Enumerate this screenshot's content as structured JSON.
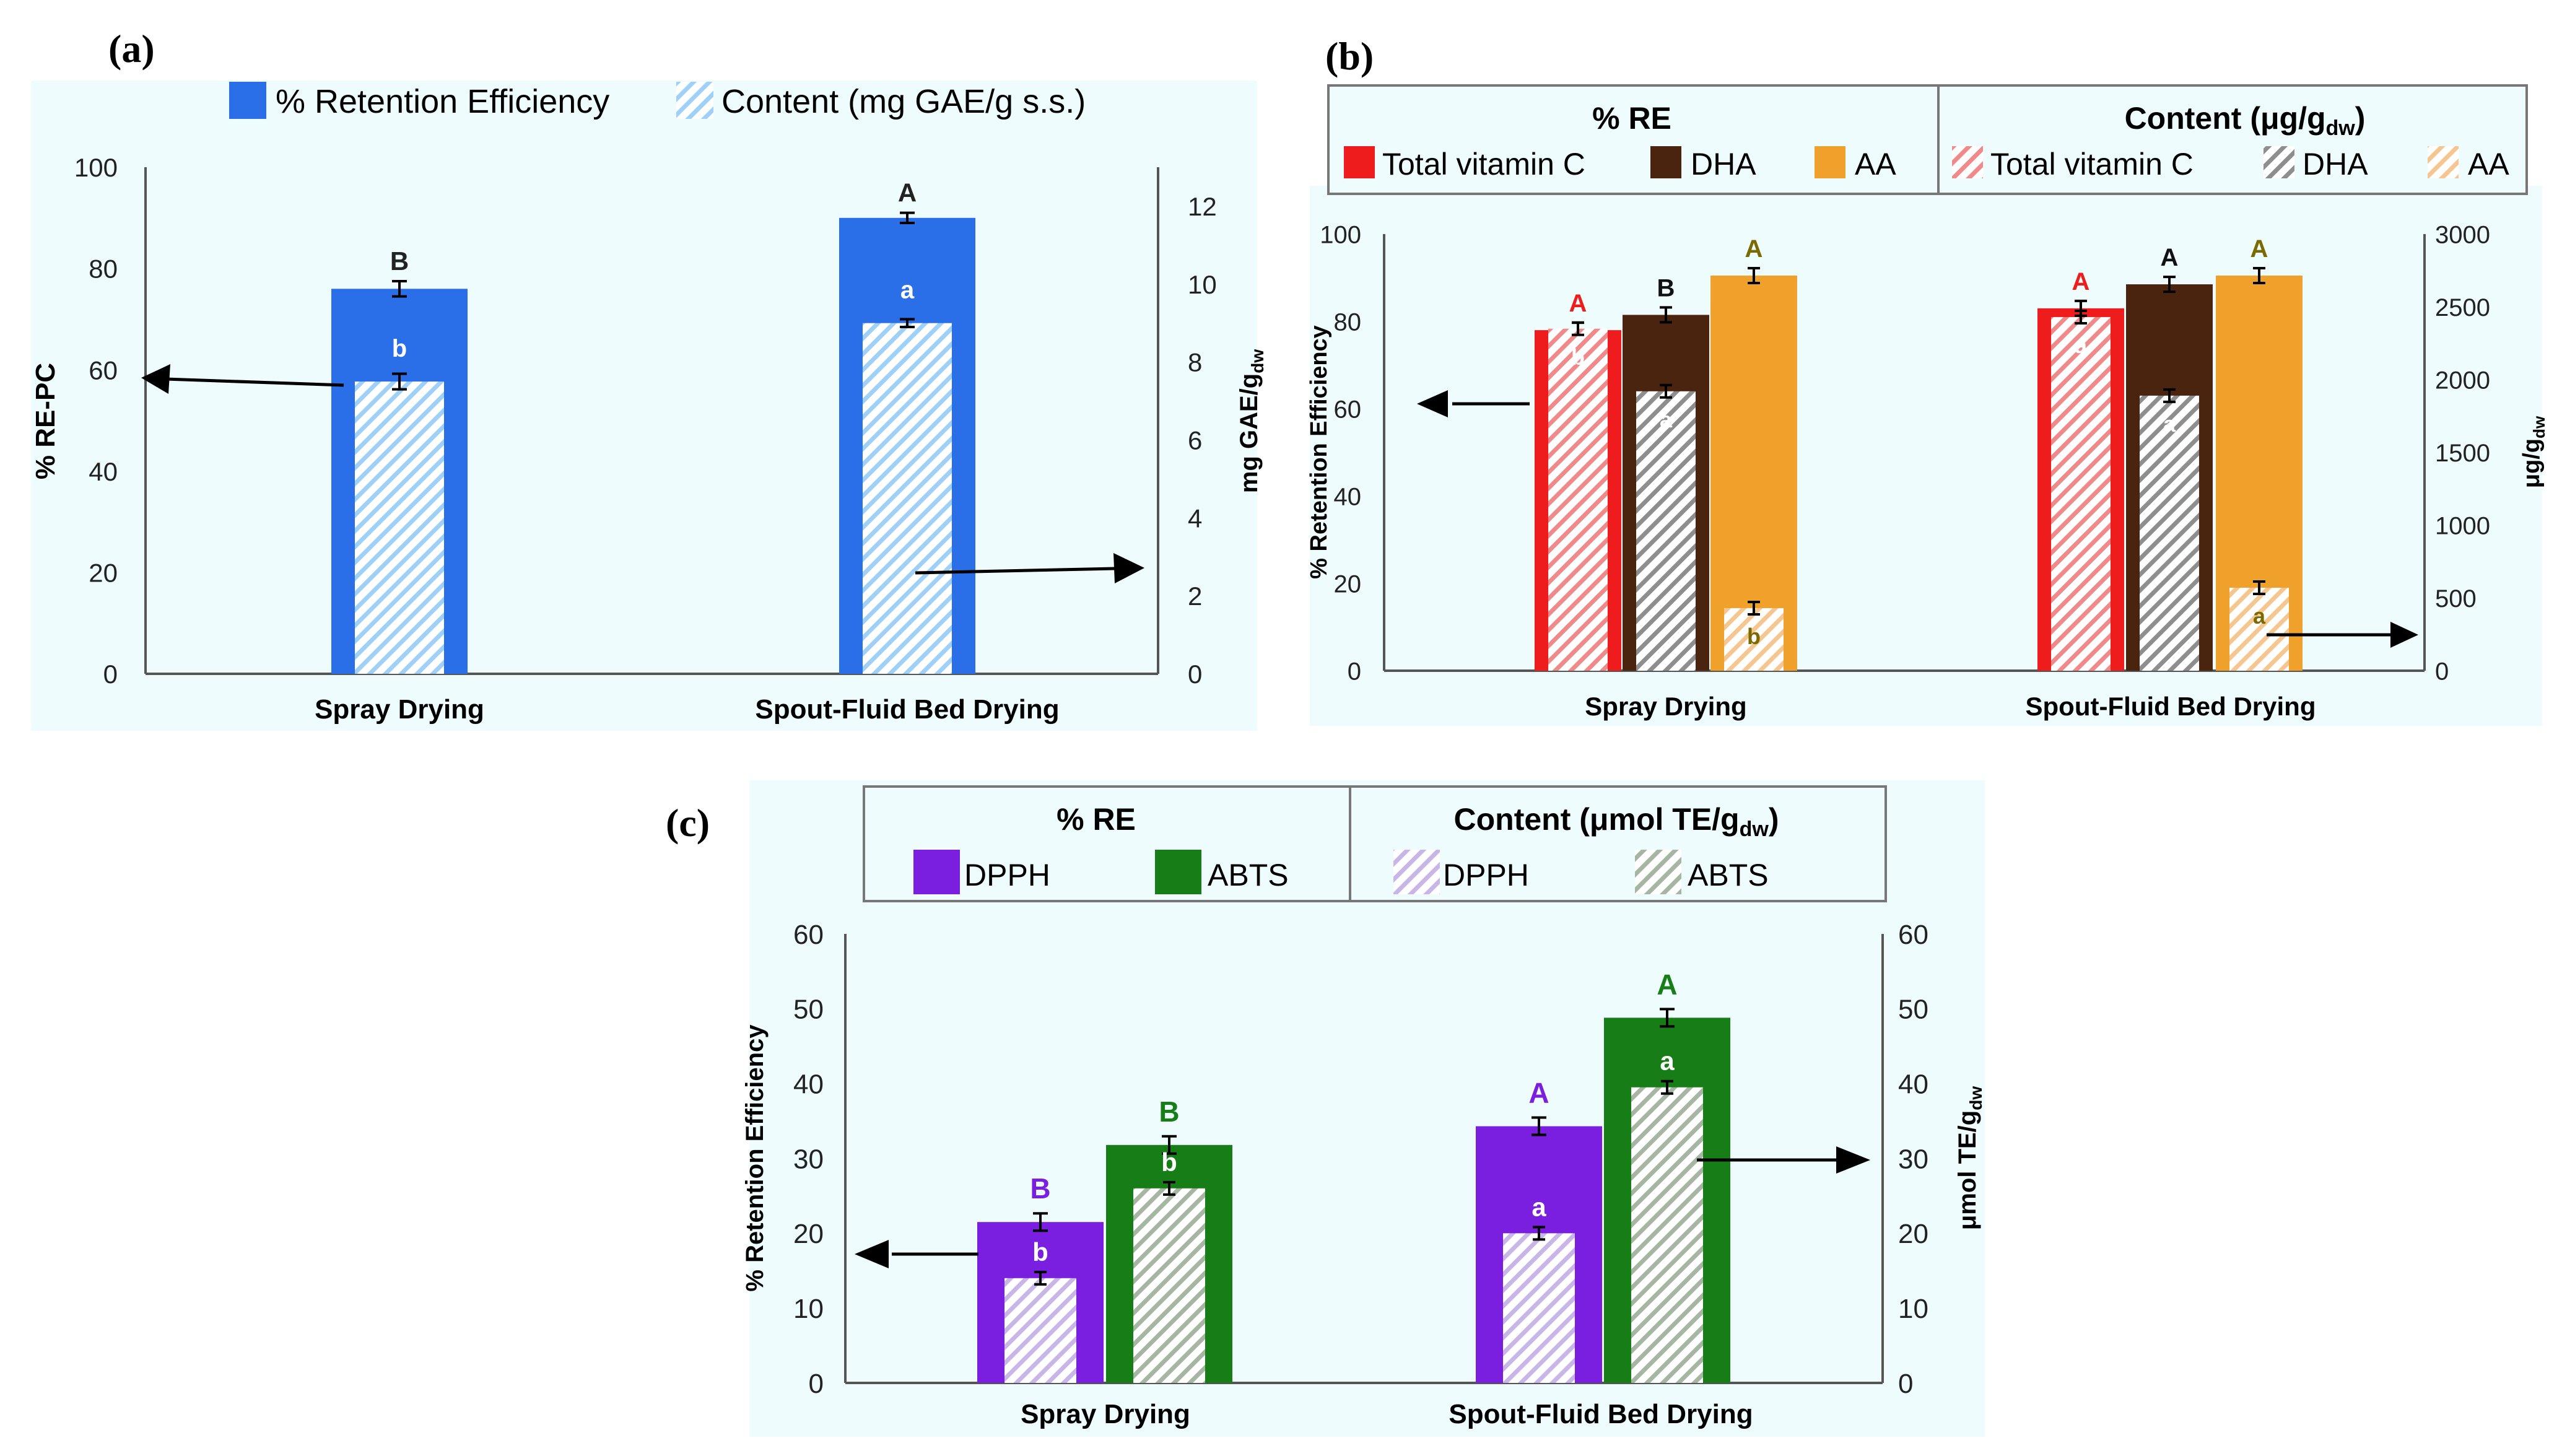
{
  "colors": {
    "panel_bg": "#eefcfd",
    "blue": "#2a6fe8",
    "light_blue": "#9fd0f7",
    "red": "#ee1c1c",
    "pink": "#f08a8a",
    "dark_brown": "#4b2410",
    "grey": "#8e8e8e",
    "orange": "#f0a12c",
    "peach": "#f6c690",
    "purple": "#7a1fe0",
    "lavender": "#c8b6e8",
    "green": "#177d17",
    "grey_green": "#a7b5a3"
  },
  "chart_data": [
    {
      "id": "a",
      "panel_label": "(a)",
      "type": "bar",
      "categories": [
        "Spray Drying",
        "Spout-Fluid Bed Drying"
      ],
      "legend": {
        "re": "% Retention Efficiency",
        "content": "Content (mg GAE/g s.s.)"
      },
      "y_left": {
        "title": "% RE-PC",
        "range": [
          0,
          100
        ],
        "ticks": [
          "0",
          "20",
          "40",
          "60",
          "80",
          "100"
        ]
      },
      "y_right": {
        "title_main": "mg GAE/g",
        "title_sub": "dw",
        "range": [
          0,
          13
        ],
        "ticks": [
          "0",
          "2",
          "4",
          "6",
          "8",
          "10",
          "12"
        ]
      },
      "series": [
        {
          "name": "% Retention Efficiency",
          "axis": "left",
          "values": [
            76,
            90
          ],
          "errors": [
            1.5,
            1
          ],
          "letters": [
            "B",
            "A"
          ]
        },
        {
          "name": "Content (mg GAE/g s.s.)",
          "axis": "right",
          "values": [
            7.5,
            9
          ],
          "errors": [
            0.2,
            0.1
          ],
          "letters": [
            "b",
            "a"
          ]
        }
      ]
    },
    {
      "id": "b",
      "panel_label": "(b)",
      "type": "bar",
      "categories": [
        "Spray Drying",
        "Spout-Fluid Bed Drying"
      ],
      "legend": {
        "re_header": "% RE",
        "content_main": "Content (μg/g",
        "content_sub": "dw",
        "content_close": ")",
        "items": [
          "Total vitamin C",
          "DHA",
          "AA"
        ]
      },
      "y_left": {
        "title": "% Retention Efficiency",
        "range": [
          0,
          100
        ],
        "ticks": [
          "0",
          "20",
          "40",
          "60",
          "80",
          "100"
        ]
      },
      "y_right": {
        "title_main": "μg/g",
        "title_sub": "dw",
        "range": [
          0,
          3000
        ],
        "ticks": [
          "0",
          "500",
          "1000",
          "1500",
          "2000",
          "2500",
          "3000"
        ]
      },
      "re_series": [
        {
          "name": "Total vitamin C",
          "values": [
            78,
            83
          ],
          "letters": [
            "A",
            "A"
          ]
        },
        {
          "name": "DHA",
          "values": [
            81.5,
            88.5
          ],
          "letters": [
            "B",
            "A"
          ]
        },
        {
          "name": "AA",
          "values": [
            90.5,
            90.5
          ],
          "letters": [
            "A",
            "A"
          ]
        }
      ],
      "content_series": [
        {
          "name": "Total vitamin C",
          "values": [
            2350,
            2430
          ],
          "letters": [
            "b",
            "a"
          ]
        },
        {
          "name": "DHA",
          "values": [
            1920,
            1890
          ],
          "letters": [
            "a",
            "a"
          ]
        },
        {
          "name": "AA",
          "values": [
            430,
            570
          ],
          "letters": [
            "b",
            "a"
          ]
        }
      ]
    },
    {
      "id": "c",
      "panel_label": "(c)",
      "type": "bar",
      "categories": [
        "Spray Drying",
        "Spout-Fluid Bed Drying"
      ],
      "legend": {
        "re_header": "% RE",
        "content_main": "Content (μmol TE/g",
        "content_sub": "dw",
        "content_close": ")",
        "items": [
          "DPPH",
          "ABTS"
        ]
      },
      "y_left": {
        "title": "% Retention Efficiency",
        "range": [
          0,
          60
        ],
        "ticks": [
          "0",
          "10",
          "20",
          "30",
          "40",
          "50",
          "60"
        ]
      },
      "y_right": {
        "title_main": "μmol TE/g",
        "title_sub": "dw",
        "range": [
          0,
          60
        ],
        "ticks": [
          "0",
          "10",
          "20",
          "30",
          "40",
          "50",
          "60"
        ]
      },
      "re_series": [
        {
          "name": "DPPH",
          "values": [
            21.5,
            34.3
          ],
          "letters": [
            "B",
            "A"
          ]
        },
        {
          "name": "ABTS",
          "values": [
            31.8,
            48.8
          ],
          "letters": [
            "B",
            "A"
          ]
        }
      ],
      "content_series": [
        {
          "name": "DPPH",
          "values": [
            14,
            20
          ],
          "letters": [
            "b",
            "a"
          ]
        },
        {
          "name": "ABTS",
          "values": [
            26,
            39.5
          ],
          "letters": [
            "b",
            "a"
          ]
        }
      ]
    }
  ]
}
